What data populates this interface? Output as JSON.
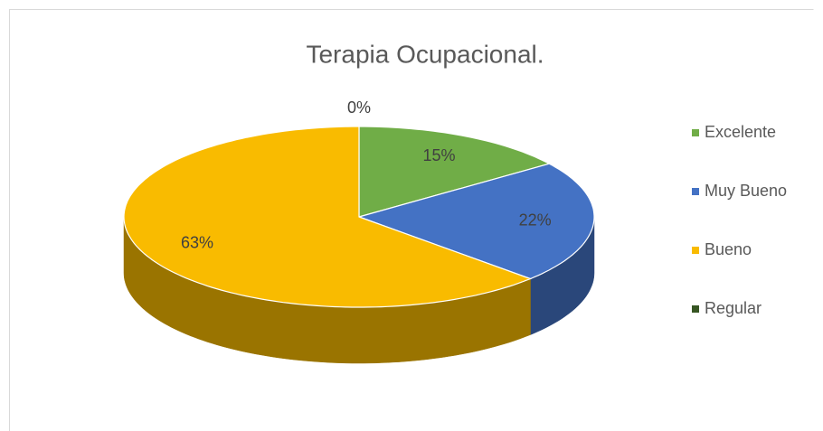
{
  "chart_data": {
    "type": "pie3d",
    "title": "Terapia Ocupacional.",
    "categories": [
      "Excelente",
      "Muy Bueno",
      "Bueno",
      "Regular"
    ],
    "values": [
      15,
      22,
      63,
      0
    ],
    "value_labels": [
      "15%",
      "22%",
      "63%",
      "0%"
    ],
    "colors": [
      "#70ad47",
      "#4472c4",
      "#f9bb00",
      "#375623"
    ],
    "legend": "right"
  }
}
